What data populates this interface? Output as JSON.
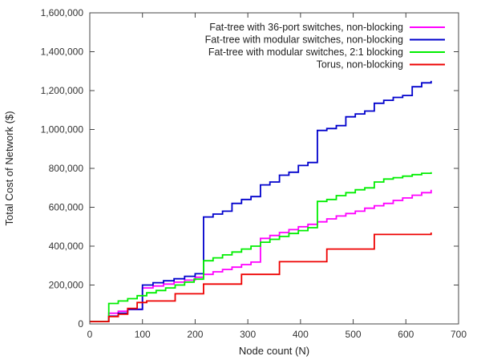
{
  "chart_data": {
    "type": "line",
    "title": "",
    "xlabel": "Node count (N)",
    "ylabel": "Total Cost of Network ($)",
    "xlim": [
      0,
      700
    ],
    "ylim": [
      0,
      1600000
    ],
    "x_ticks": [
      0,
      100,
      200,
      300,
      400,
      500,
      600,
      700
    ],
    "x_tick_labels": [
      "0",
      "100",
      "200",
      "300",
      "400",
      "500",
      "600",
      "700"
    ],
    "y_ticks": [
      0,
      200000,
      400000,
      600000,
      800000,
      1000000,
      1200000,
      1400000,
      1600000
    ],
    "y_tick_labels": [
      "0",
      "200,000",
      "400,000",
      "600,000",
      "800,000",
      "1,000,000",
      "1,200,000",
      "1,400,000",
      "1,600,000"
    ],
    "grid": false,
    "legend_position": "top-right",
    "series": [
      {
        "name": "Fat-tree with 36-port switches, non-blocking",
        "color": "#ff00ff",
        "step": true,
        "x": [
          0,
          36,
          36,
          54,
          72,
          100,
          100,
          120,
          140,
          160,
          180,
          200,
          216,
          234,
          252,
          270,
          288,
          306,
          324,
          324,
          342,
          360,
          378,
          396,
          414,
          432,
          450,
          468,
          486,
          504,
          522,
          540,
          558,
          576,
          594,
          612,
          630,
          648
        ],
        "y": [
          12000,
          12000,
          55000,
          65000,
          75000,
          180000,
          185000,
          195000,
          205000,
          215000,
          225000,
          240000,
          255000,
          268000,
          280000,
          292000,
          305000,
          318000,
          330000,
          440000,
          455000,
          470000,
          485000,
          500000,
          512000,
          525000,
          540000,
          555000,
          568000,
          580000,
          595000,
          608000,
          620000,
          635000,
          648000,
          662000,
          675000,
          690000
        ]
      },
      {
        "name": "Fat-tree with modular switches, non-blocking",
        "color": "#0000cc",
        "step": true,
        "x": [
          0,
          36,
          54,
          72,
          100,
          100,
          120,
          140,
          160,
          180,
          200,
          216,
          216,
          234,
          252,
          270,
          288,
          306,
          324,
          342,
          360,
          378,
          396,
          414,
          432,
          432,
          450,
          468,
          486,
          504,
          522,
          540,
          558,
          576,
          594,
          612,
          630,
          648
        ],
        "y": [
          12000,
          40000,
          55000,
          75000,
          85000,
          200000,
          212000,
          222000,
          232000,
          245000,
          258000,
          270000,
          550000,
          565000,
          580000,
          620000,
          640000,
          655000,
          715000,
          730000,
          765000,
          780000,
          815000,
          830000,
          850000,
          995000,
          1005000,
          1020000,
          1065000,
          1080000,
          1095000,
          1135000,
          1150000,
          1165000,
          1175000,
          1220000,
          1240000,
          1250000
        ]
      },
      {
        "name": "Fat-tree with modular switches, 2:1 blocking",
        "color": "#00ee00",
        "step": true,
        "x": [
          0,
          36,
          36,
          54,
          72,
          90,
          108,
          126,
          144,
          162,
          180,
          198,
          216,
          216,
          234,
          252,
          270,
          288,
          306,
          324,
          342,
          360,
          378,
          396,
          414,
          432,
          432,
          450,
          468,
          486,
          504,
          522,
          540,
          558,
          576,
          594,
          612,
          630,
          648
        ],
        "y": [
          12000,
          12000,
          105000,
          118000,
          130000,
          145000,
          160000,
          172000,
          185000,
          200000,
          215000,
          230000,
          245000,
          325000,
          340000,
          355000,
          370000,
          385000,
          400000,
          420000,
          435000,
          450000,
          465000,
          480000,
          495000,
          505000,
          630000,
          640000,
          660000,
          675000,
          690000,
          700000,
          730000,
          745000,
          752000,
          760000,
          768000,
          775000,
          780000
        ]
      },
      {
        "name": "Torus, non-blocking",
        "color": "#ee0000",
        "step": true,
        "x": [
          0,
          36,
          54,
          72,
          90,
          108,
          162,
          216,
          288,
          360,
          450,
          540,
          648
        ],
        "y": [
          12000,
          38000,
          50000,
          80000,
          110000,
          118000,
          155000,
          205000,
          255000,
          320000,
          385000,
          460000,
          470000
        ]
      }
    ]
  }
}
